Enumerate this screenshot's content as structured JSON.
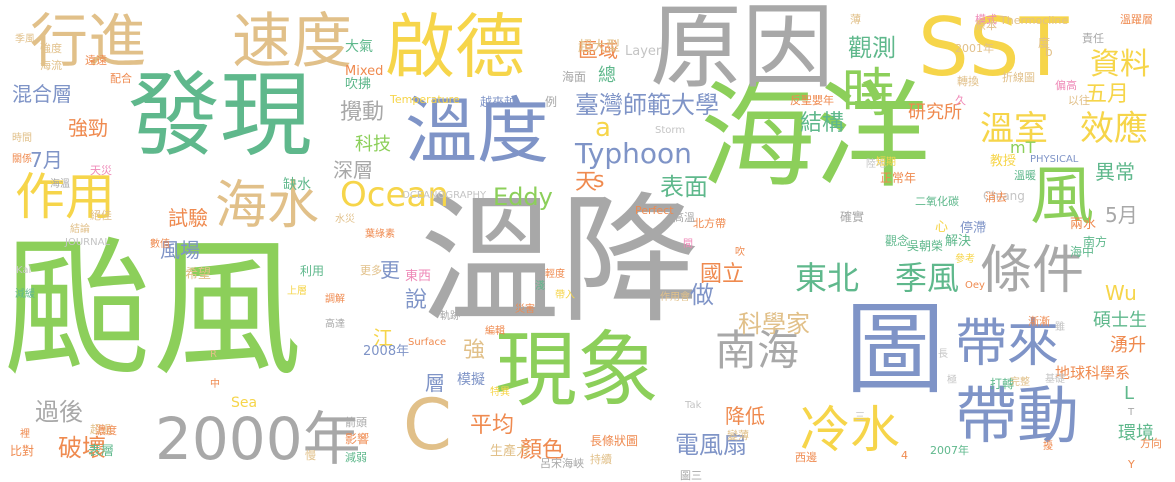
{
  "colors": {
    "green": "#8ccf5a",
    "teal": "#5fb88c",
    "gray": "#a8a8a8",
    "blue": "#7f94c7",
    "yellow": "#f6d54a",
    "tan": "#e1c089",
    "pink": "#ef8ab8",
    "orange": "#ef8a4f",
    "lightgray": "#c4c4c4"
  },
  "words": [
    "颱風",
    "溫降",
    "海洋",
    "原因",
    "發現",
    "現象",
    "SST",
    "溫度",
    "啟德",
    "圖",
    "速度",
    "行進",
    "2000年",
    "帶動",
    "風",
    "時",
    "條件",
    "帶來",
    "南海",
    "海水",
    "冷水",
    "作用",
    "Ocean",
    "C",
    "Typhoon",
    "東北",
    "季風",
    "溫室",
    "效應",
    "資料",
    "五月",
    "結構",
    "臺灣師範大學",
    "區域",
    "觀測",
    "研究所",
    "國立",
    "科學家",
    "電風扇",
    "降低",
    "表面",
    "Eddy",
    "破壞",
    "過後",
    "混合層",
    "強勁",
    "7月",
    "試驗",
    "風場",
    "攪動",
    "深層",
    "科技",
    "Wu",
    "湧升",
    "碩士生",
    "環境",
    "地球科學系",
    "顏色",
    "平均",
    "5月",
    "異常",
    "總",
    "天",
    "做",
    "說",
    "江",
    "層",
    "更",
    "東西",
    "希望",
    "表層",
    "缺水",
    "大氣",
    "超大型",
    "Layer",
    "Thermocline",
    "溫躍層",
    "責任",
    "2001年",
    "模式",
    "Temperature",
    "越來越",
    "例",
    "Storm",
    "反聖嬰年",
    "以往",
    "偏高",
    "折線圖",
    "轉換",
    "度",
    "久",
    "Mixed",
    "吹拂",
    "海面",
    "原本",
    "薄",
    "教授",
    "Chiang",
    "正常年",
    "二氧化碳",
    "心",
    "停滯",
    "消去",
    "確實",
    "北方帶",
    "Perfect",
    "高溫",
    "PHYSICAL",
    "OCEANOGRAPHY",
    "JOURNAL",
    "時間",
    "關係",
    "配合",
    "強度",
    "海流",
    "遠遠",
    "季風",
    "天災",
    "海溫",
    "絕佳",
    "結論",
    "中",
    "數值",
    "上層",
    "高達",
    "調解",
    "葉綠素",
    "水災",
    "更多",
    "利用",
    "災害",
    "淺",
    "輕度",
    "帶入",
    "軌跡",
    "編輯",
    "Surface",
    "2008年",
    "Sea",
    "特異",
    "模擬",
    "箭頭",
    "影響",
    "生產力",
    "呂宋海峽",
    "長條狀圖",
    "持續",
    "減弱",
    "慢",
    "比對",
    "裡",
    "超過",
    "濃度",
    "方向",
    "Y",
    "2007年",
    "基礎",
    "三",
    "極",
    "打轉",
    "完整",
    "西邊",
    "變薄",
    "Tak",
    "作用會",
    "間",
    "吹",
    "陸地",
    "短期",
    "觀念",
    "吳朝榮",
    "解決",
    "兩水",
    "海中",
    "南方",
    "參考",
    "Oey",
    "漸漸",
    "雖",
    "圖三",
    "擾",
    "溫暖",
    "R",
    "Kai",
    "減緩",
    "T",
    "mT",
    "b",
    "s",
    "a",
    "L",
    "強",
    "長",
    "4"
  ]
}
